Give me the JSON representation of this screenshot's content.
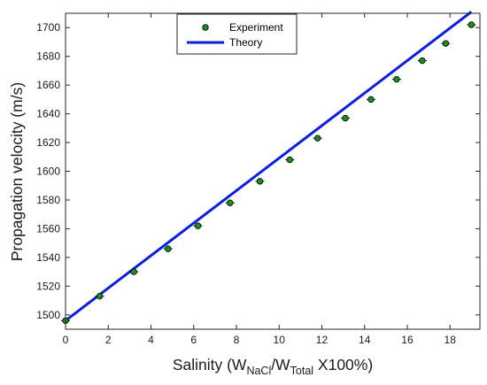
{
  "chart_data": {
    "type": "scatter",
    "title": "",
    "xlabel_parts": {
      "prefix": "Salinity (W",
      "sub1": "NaCl",
      "mid": "/W",
      "sub2": "Total",
      "suffix": " X100%)"
    },
    "ylabel": "Propagation velocity (m/s)",
    "xlim": [
      0,
      19.4
    ],
    "ylim": [
      1490,
      1710
    ],
    "xticks": [
      0,
      2,
      4,
      6,
      8,
      10,
      12,
      14,
      16,
      18
    ],
    "yticks": [
      1500,
      1520,
      1540,
      1560,
      1580,
      1600,
      1620,
      1640,
      1660,
      1680,
      1700
    ],
    "grid": false,
    "legend_position": "top-center",
    "series": [
      {
        "name": "Experiment",
        "kind": "markers",
        "marker_fill": "#1a8f1a",
        "marker_edge": "#000000",
        "x": [
          0.0,
          1.6,
          3.2,
          4.8,
          6.2,
          7.7,
          9.1,
          10.5,
          11.8,
          13.1,
          14.3,
          15.5,
          16.7,
          17.8,
          19.0
        ],
        "y": [
          1496,
          1513,
          1530,
          1546,
          1562,
          1578,
          1593,
          1608,
          1623,
          1637,
          1650,
          1664,
          1677,
          1689,
          1702
        ],
        "error": 0.8
      },
      {
        "name": "Theory",
        "kind": "line",
        "color": "#0a1ee0",
        "x": [
          0.0,
          19.0
        ],
        "y": [
          1496,
          1711
        ]
      }
    ]
  }
}
